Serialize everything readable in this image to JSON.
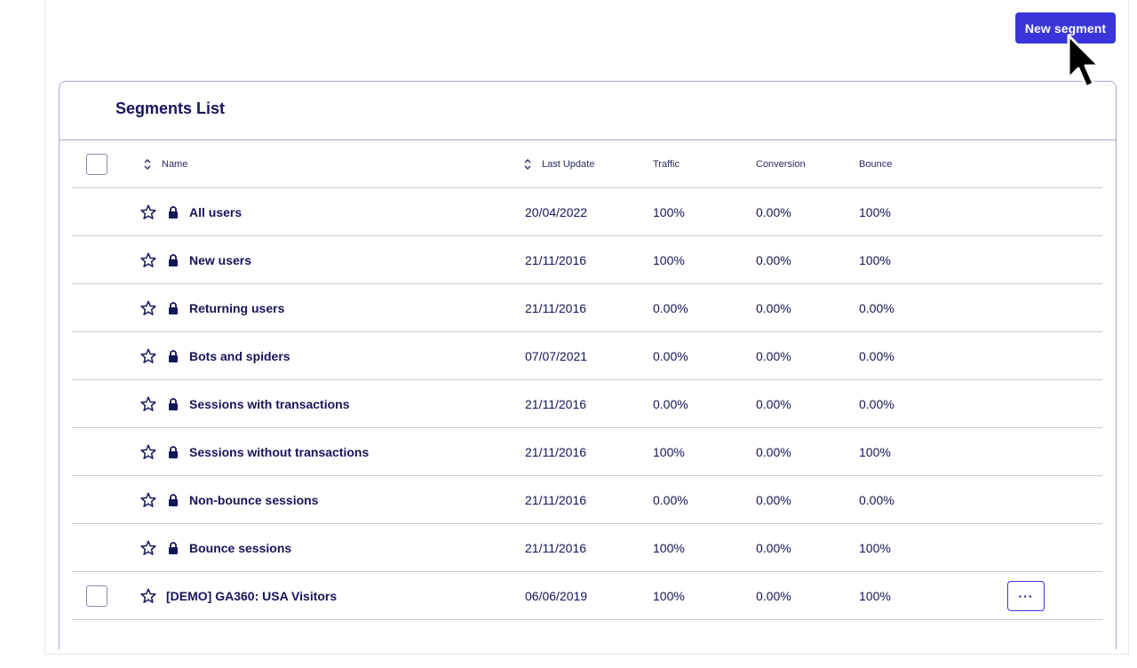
{
  "toolbar": {
    "new_segment_label": "New segment"
  },
  "segments_list": {
    "title": "Segments List",
    "columns": {
      "name": "Name",
      "last_update": "Last Update",
      "traffic": "Traffic",
      "conversion": "Conversion",
      "bounce": "Bounce"
    },
    "rows": [
      {
        "name": "All users",
        "last_update": "20/04/2022",
        "traffic": "100%",
        "conversion": "0.00%",
        "bounce": "100%",
        "locked": true
      },
      {
        "name": "New users",
        "last_update": "21/11/2016",
        "traffic": "100%",
        "conversion": "0.00%",
        "bounce": "100%",
        "locked": true
      },
      {
        "name": "Returning users",
        "last_update": "21/11/2016",
        "traffic": "0.00%",
        "conversion": "0.00%",
        "bounce": "0.00%",
        "locked": true
      },
      {
        "name": "Bots and spiders",
        "last_update": "07/07/2021",
        "traffic": "0.00%",
        "conversion": "0.00%",
        "bounce": "0.00%",
        "locked": true
      },
      {
        "name": "Sessions with transactions",
        "last_update": "21/11/2016",
        "traffic": "0.00%",
        "conversion": "0.00%",
        "bounce": "0.00%",
        "locked": true
      },
      {
        "name": "Sessions without transactions",
        "last_update": "21/11/2016",
        "traffic": "100%",
        "conversion": "0.00%",
        "bounce": "100%",
        "locked": true
      },
      {
        "name": "Non-bounce sessions",
        "last_update": "21/11/2016",
        "traffic": "0.00%",
        "conversion": "0.00%",
        "bounce": "0.00%",
        "locked": true
      },
      {
        "name": "Bounce sessions",
        "last_update": "21/11/2016",
        "traffic": "100%",
        "conversion": "0.00%",
        "bounce": "100%",
        "locked": true
      },
      {
        "name": "[DEMO] GA360: USA Visitors",
        "last_update": "06/06/2019",
        "traffic": "100%",
        "conversion": "0.00%",
        "bounce": "100%",
        "locked": false,
        "more_label": "···"
      }
    ]
  },
  "colors": {
    "accent": "#3b35d9",
    "text": "#15155a",
    "border": "#a9a9c3"
  }
}
